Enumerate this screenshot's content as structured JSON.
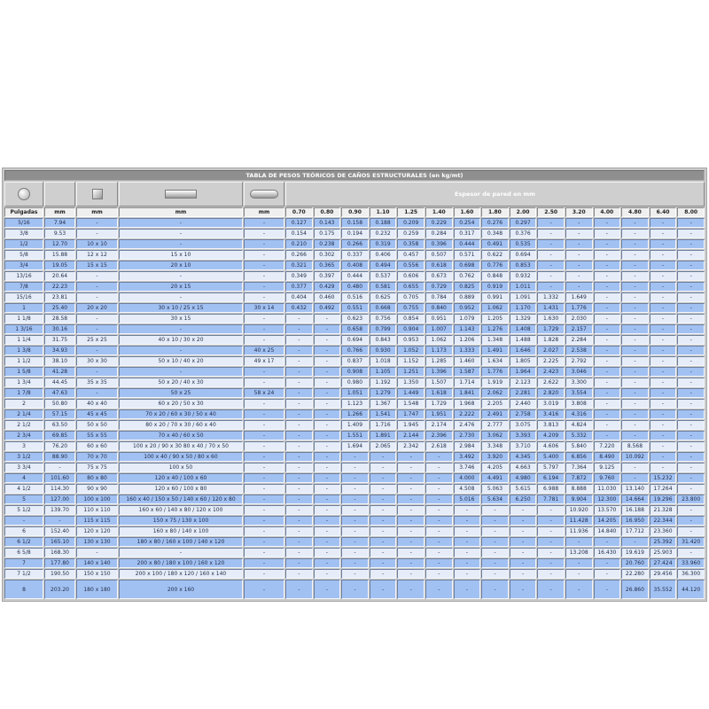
{
  "title": "TABLA DE PESOS TEÓRICOS DE CAÑOS ESTRUCTURALES (en kg/mt)",
  "espesor_label": "Espesor de pared en mm",
  "icons": [
    "round-tube-icon",
    "square-tube-icon",
    "rectangular-tube-icon",
    "oval-tube-icon"
  ],
  "colors": {
    "row_blue": "#a2c1f3",
    "row_light": "#e6edf9",
    "title_bar": "#8f8f8f"
  },
  "headers": [
    "Pulgadas",
    "mm",
    "mm",
    "mm",
    "mm",
    "0.70",
    "0.80",
    "0.90",
    "1.10",
    "1.25",
    "1.40",
    "1.60",
    "1.80",
    "2.00",
    "2.50",
    "3.20",
    "4.00",
    "4.80",
    "6.40",
    "8.00"
  ],
  "rows": [
    [
      "5/16",
      "7.94",
      "-",
      "-",
      "-",
      "0.127",
      "0.143",
      "0.158",
      "0.188",
      "0.209",
      "0.229",
      "0.254",
      "0.276",
      "0.297",
      "-",
      "-",
      "-",
      "-",
      "-",
      "-"
    ],
    [
      "3/8",
      "9.53",
      "-",
      "-",
      "-",
      "0.154",
      "0.175",
      "0.194",
      "0.232",
      "0.259",
      "0.284",
      "0.317",
      "0.348",
      "0.376",
      "-",
      "-",
      "-",
      "-",
      "-",
      "-"
    ],
    [
      "1/2",
      "12.70",
      "10 x 10",
      "-",
      "-",
      "0.210",
      "0.238",
      "0.266",
      "0.319",
      "0.358",
      "0.396",
      "0.444",
      "0.491",
      "0.535",
      "-",
      "-",
      "-",
      "-",
      "-",
      "-"
    ],
    [
      "5/8",
      "15.88",
      "12 x 12",
      "15 x 10",
      "-",
      "0.266",
      "0.302",
      "0.337",
      "0.406",
      "0.457",
      "0.507",
      "0.571",
      "0.622",
      "0.694",
      "-",
      "-",
      "-",
      "-",
      "-",
      "-"
    ],
    [
      "3/4",
      "19.05",
      "15 x 15",
      "20 x 10",
      "-",
      "0.321",
      "0.365",
      "0.408",
      "0.494",
      "0.556",
      "0.618",
      "0.698",
      "0.776",
      "0.853",
      "-",
      "-",
      "-",
      "-",
      "-",
      "-"
    ],
    [
      "13/16",
      "20.64",
      "-",
      "-",
      "-",
      "0.349",
      "0.397",
      "0.444",
      "0.537",
      "0.606",
      "0.673",
      "0.762",
      "0.848",
      "0.932",
      "-",
      "-",
      "-",
      "-",
      "-",
      "-"
    ],
    [
      "7/8",
      "22.23",
      "-",
      "20 x 15",
      "-",
      "0.377",
      "0.429",
      "0.480",
      "0.581",
      "0.655",
      "0.729",
      "0.825",
      "0.919",
      "1.011",
      "-",
      "-",
      "-",
      "-",
      "-",
      "-"
    ],
    [
      "15/16",
      "23.81",
      "-",
      "-",
      "-",
      "0.404",
      "0.460",
      "0.516",
      "0.625",
      "0.705",
      "0.784",
      "0.889",
      "0.991",
      "1.091",
      "1.332",
      "1.649",
      "-",
      "-",
      "-",
      "-"
    ],
    [
      "1",
      "25.40",
      "20 x 20",
      "30 x 10 / 25 x 15",
      "30 x 14",
      "0.432",
      "0.492",
      "0.551",
      "0.668",
      "0.755",
      "0.840",
      "0.952",
      "1.062",
      "1.170",
      "1.431",
      "1.776",
      "-",
      "-",
      "-",
      "-"
    ],
    [
      "1 1/8",
      "28.58",
      "-",
      "30 x 15",
      "-",
      "-",
      "-",
      "0.623",
      "0.756",
      "0.854",
      "0.951",
      "1.079",
      "1.205",
      "1.329",
      "1.630",
      "2.030",
      "-",
      "-",
      "-",
      "-"
    ],
    [
      "1 3/16",
      "30.16",
      "-",
      "-",
      "-",
      "-",
      "-",
      "0.658",
      "0.799",
      "0.904",
      "1.007",
      "1.143",
      "1.276",
      "1.408",
      "1.729",
      "2.157",
      "-",
      "-",
      "-",
      "-"
    ],
    [
      "1 1/4",
      "31.75",
      "25 x 25",
      "40 x 10 / 30 x 20",
      "-",
      "-",
      "-",
      "0.694",
      "0.843",
      "0.953",
      "1.062",
      "1.206",
      "1.348",
      "1.488",
      "1.828",
      "2.284",
      "-",
      "-",
      "-",
      "-"
    ],
    [
      "1 3/8",
      "34.93",
      "-",
      "-",
      "40 x 25",
      "-",
      "-",
      "0.766",
      "0.930",
      "1.052",
      "1.173",
      "1.333",
      "1.491",
      "1.646",
      "2.027",
      "2.538",
      "-",
      "-",
      "-",
      "-"
    ],
    [
      "1 1/2",
      "38.10",
      "30 x 30",
      "50 x 10 / 40 x 20",
      "49 x 17",
      "-",
      "-",
      "0.837",
      "1.018",
      "1.152",
      "1.285",
      "1.460",
      "1.634",
      "1.805",
      "2.225",
      "2.792",
      "-",
      "-",
      "-",
      "-"
    ],
    [
      "1 5/8",
      "41.28",
      "-",
      "-",
      "-",
      "-",
      "-",
      "0.908",
      "1.105",
      "1.251",
      "1.396",
      "1.587",
      "1.776",
      "1.964",
      "2.423",
      "3.046",
      "-",
      "-",
      "-",
      "-"
    ],
    [
      "1 3/4",
      "44.45",
      "35 x 35",
      "50 x 20 / 40 x 30",
      "-",
      "-",
      "-",
      "0.980",
      "1.192",
      "1.350",
      "1.507",
      "1.714",
      "1.919",
      "2.123",
      "2.622",
      "3.300",
      "-",
      "-",
      "-",
      "-"
    ],
    [
      "1 7/8",
      "47.63",
      "-",
      "50 x 25",
      "58 x 24",
      "-",
      "-",
      "1.051",
      "1.279",
      "1.449",
      "1.618",
      "1.841",
      "2.062",
      "2.281",
      "2.820",
      "3.554",
      "-",
      "-",
      "-",
      "-"
    ],
    [
      "2",
      "50.80",
      "40 x 40",
      "60 x 20 / 50 x 30",
      "-",
      "-",
      "-",
      "1.123",
      "1.367",
      "1.548",
      "1.729",
      "1.968",
      "2.205",
      "2.440",
      "3.019",
      "3.808",
      "-",
      "-",
      "-",
      "-"
    ],
    [
      "2 1/4",
      "57.15",
      "45 x 45",
      "70 x 20 / 60 x 30 / 50 x 40",
      "-",
      "-",
      "-",
      "1.266",
      "1.541",
      "1.747",
      "1.951",
      "2.222",
      "2.491",
      "2.758",
      "3.416",
      "4.316",
      "-",
      "-",
      "-",
      "-"
    ],
    [
      "2 1/2",
      "63.50",
      "50 x 50",
      "80 x 20 / 70 x 30 / 60 x 40",
      "-",
      "-",
      "-",
      "1.409",
      "1.716",
      "1.945",
      "2.174",
      "2.476",
      "2.777",
      "3.075",
      "3.813",
      "4.824",
      "-",
      "-",
      "-",
      "-"
    ],
    [
      "2 3/4",
      "69.85",
      "55 x 55",
      "70 x 40 / 60 x 50",
      "-",
      "-",
      "-",
      "1.551",
      "1.891",
      "2.144",
      "2.396",
      "2.730",
      "3.062",
      "3.393",
      "4.209",
      "5.332",
      "-",
      "-",
      "-",
      "-"
    ],
    [
      "3",
      "76.20",
      "60 x 60",
      "100 x 20 / 90 x 30 80 x 40 / 70 x 50",
      "-",
      "-",
      "-",
      "1.694",
      "2.065",
      "2.342",
      "2.618",
      "2.984",
      "3.348",
      "3.710",
      "4.606",
      "5.840",
      "7.220",
      "8.568",
      "-",
      "-"
    ],
    [
      "3 1/2",
      "88.90",
      "70 x 70",
      "100 x 40 / 90 x 50 / 80 x 60",
      "-",
      "-",
      "-",
      "-",
      "-",
      "-",
      "-",
      "3.492",
      "3.920",
      "4.345",
      "5.400",
      "6.856",
      "8.490",
      "10.092",
      "-",
      "-"
    ],
    [
      "3 3/4",
      "-",
      "75 x 75",
      "100 x 50",
      "-",
      "-",
      "-",
      "-",
      "-",
      "-",
      "-",
      "3.746",
      "4.205",
      "4.663",
      "5.797",
      "7.364",
      "9.125",
      "-",
      "-",
      "-"
    ],
    [
      "4",
      "101.60",
      "80 x 80",
      "120 x 40 / 100 x 60",
      "-",
      "-",
      "-",
      "-",
      "-",
      "-",
      "-",
      "4.000",
      "4.491",
      "4.980",
      "6.194",
      "7.872",
      "9.760",
      "-",
      "15.232",
      "-"
    ],
    [
      "4 1/2",
      "114.30",
      "90 x 90",
      "120 x 60 / 100 x 80",
      "-",
      "-",
      "-",
      "-",
      "-",
      "-",
      "-",
      "4.508",
      "5.063",
      "5.615",
      "6.988",
      "8.888",
      "11.030",
      "13.140",
      "17.264",
      "-"
    ],
    [
      "5",
      "127.00",
      "100 x 100",
      "160 x 40 / 150 x 50 / 140 x 60 / 120 x 80",
      "-",
      "-",
      "-",
      "-",
      "-",
      "-",
      "-",
      "5.016",
      "5.634",
      "6.250",
      "7.781",
      "9.904",
      "12.300",
      "14.664",
      "19.296",
      "23.800"
    ],
    [
      "5 1/2",
      "139.70",
      "110 x 110",
      "160 x 60 / 140 x 80 / 120 x 100",
      "-",
      "-",
      "-",
      "-",
      "-",
      "-",
      "-",
      "-",
      "-",
      "-",
      "-",
      "10.920",
      "13.570",
      "16.188",
      "21.328",
      "-"
    ],
    [
      "-",
      "-",
      "115 x 115",
      "150 x 75 / 130 x 100",
      "-",
      "-",
      "-",
      "-",
      "-",
      "-",
      "-",
      "-",
      "-",
      "-",
      "-",
      "11.428",
      "14.205",
      "16.950",
      "22.344",
      "-"
    ],
    [
      "6",
      "152.40",
      "120 x 120",
      "160 x 80 / 140 x 100",
      "-",
      "-",
      "-",
      "-",
      "-",
      "-",
      "-",
      "-",
      "-",
      "-",
      "-",
      "11.936",
      "14.840",
      "17.712",
      "23.360",
      "-"
    ],
    [
      "6 1/2",
      "165.10",
      "130 x 130",
      "180 x 80 / 160 x 100 / 140 x 120",
      "-",
      "-",
      "-",
      "-",
      "-",
      "-",
      "-",
      "-",
      "-",
      "-",
      "-",
      "-",
      "-",
      "-",
      "25.392",
      "31.420"
    ],
    [
      "6 5/8",
      "168.30",
      "-",
      "-",
      "-",
      "-",
      "-",
      "-",
      "-",
      "-",
      "-",
      "-",
      "-",
      "-",
      "-",
      "13.208",
      "16.430",
      "19.619",
      "25.903",
      "-"
    ],
    [
      "7",
      "177.80",
      "140 x 140",
      "200 x 80 / 180 x 100 / 160 x 120",
      "-",
      "-",
      "-",
      "-",
      "-",
      "-",
      "-",
      "-",
      "-",
      "-",
      "-",
      "-",
      "-",
      "20.760",
      "27.424",
      "33.960"
    ],
    [
      "7 1/2",
      "190.50",
      "150 x 150",
      "200 x 100 / 180 x 120 / 160 x 140",
      "-",
      "-",
      "-",
      "-",
      "-",
      "-",
      "-",
      "-",
      "-",
      "-",
      "-",
      "-",
      "-",
      "22.280",
      "29.456",
      "36.300"
    ],
    [
      "8",
      "203.20",
      "180 x 180",
      "200 x 160",
      "-",
      "-",
      "-",
      "-",
      "-",
      "-",
      "-",
      "-",
      "-",
      "-",
      "-",
      "-",
      "-",
      "26.860",
      "35.552",
      "44.120"
    ]
  ]
}
